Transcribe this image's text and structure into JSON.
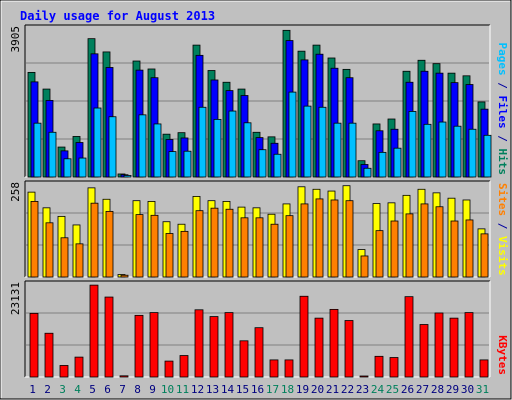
{
  "chart_data": {
    "type": "bar",
    "title": "Daily usage for August 2013",
    "categories": [
      "1",
      "2",
      "3",
      "4",
      "5",
      "6",
      "7",
      "8",
      "9",
      "10",
      "11",
      "12",
      "13",
      "14",
      "15",
      "16",
      "17",
      "18",
      "19",
      "20",
      "21",
      "22",
      "23",
      "24",
      "25",
      "26",
      "27",
      "28",
      "29",
      "30",
      "31"
    ],
    "weekend_days": [
      "3",
      "4",
      "10",
      "11",
      "17",
      "18",
      "24",
      "25",
      "31"
    ],
    "panels": [
      {
        "id": "hits-files-pages",
        "max_label": "3905",
        "ymax": 3905,
        "axis_label_parts": [
          {
            "text": "Pages",
            "color": "#00c0ff"
          },
          {
            "text": " / ",
            "color": "#0000a0"
          },
          {
            "text": "Files",
            "color": "#0000ff"
          },
          {
            "text": " / ",
            "color": "#0000a0"
          },
          {
            "text": "Hits",
            "color": "#00805c"
          }
        ],
        "series": [
          {
            "name": "Hits",
            "color": "#00805c",
            "values": [
              2760,
              2320,
              790,
              1070,
              3650,
              3300,
              80,
              3060,
              2850,
              1130,
              1170,
              3480,
              2810,
              2500,
              2320,
              1180,
              1060,
              3870,
              3320,
              3480,
              3140,
              2840,
              430,
              1400,
              1530,
              2790,
              3080,
              2990,
              2740,
              2670,
              1980
            ]
          },
          {
            "name": "Files",
            "color": "#0000ff",
            "values": [
              2510,
              2020,
              690,
              910,
              3250,
              2890,
              60,
              2820,
              2620,
              990,
              1030,
              3210,
              2560,
              2280,
              2150,
              1040,
              890,
              3600,
              3090,
              3240,
              2870,
              2620,
              330,
              1220,
              1260,
              2500,
              2790,
              2740,
              2490,
              2440,
              1790
            ]
          },
          {
            "name": "Pages",
            "color": "#00c0ff",
            "values": [
              1420,
              1180,
              480,
              500,
              1820,
              1590,
              40,
              1640,
              1400,
              670,
              680,
              1840,
              1520,
              1740,
              1430,
              720,
              600,
              2240,
              1870,
              1840,
              1420,
              1420,
              230,
              650,
              760,
              1730,
              1390,
              1450,
              1340,
              1260,
              1100
            ]
          }
        ]
      },
      {
        "id": "visits-sites",
        "max_label": "258",
        "ymax": 258,
        "axis_label_parts": [
          {
            "text": "Sites",
            "color": "#ff8000"
          },
          {
            "text": " / ",
            "color": "#0000a0"
          },
          {
            "text": "Visits",
            "color": "#ffff00"
          }
        ],
        "series": [
          {
            "name": "Visits",
            "color": "#ffff00",
            "values": [
              238,
              194,
              170,
              146,
              250,
              218,
              7,
              214,
              212,
              155,
              148,
              226,
              214,
              212,
              196,
              194,
              176,
              205,
              253,
              246,
              241,
              256,
              77,
              206,
              208,
              229,
              246,
              236,
              221,
              216,
              135
            ]
          },
          {
            "name": "Sites",
            "color": "#ff8000",
            "values": [
              212,
              152,
              110,
              93,
              207,
              184,
              5,
              175,
              173,
              122,
              128,
              186,
              193,
              190,
              166,
              166,
              148,
              172,
              205,
              219,
              216,
              214,
              59,
              130,
              157,
              177,
              205,
              197,
              157,
              160,
              121
            ]
          }
        ]
      },
      {
        "id": "kbytes",
        "max_label": "23131",
        "ymax": 23131,
        "axis_label_parts": [
          {
            "text": "KBytes",
            "color": "#ff0000"
          }
        ],
        "series": [
          {
            "name": "KBytes",
            "color": "#ff0000",
            "values": [
              16000,
              11000,
              2900,
              5000,
              23100,
              20100,
              300,
              15500,
              16200,
              4000,
              5400,
              16900,
              15200,
              16200,
              9100,
              12400,
              4300,
              4300,
              20300,
              14800,
              17000,
              14200,
              40,
              5200,
              4900,
              20200,
              13200,
              16100,
              14800,
              16200,
              4300
            ]
          }
        ]
      }
    ]
  },
  "colors": {
    "frame_bg": "#c0c0c0",
    "panel_bg": "#c0c0c0",
    "grid": "#808080",
    "title": "#0000ff",
    "weekday_label": "#000080",
    "weekend_label": "#00805c"
  }
}
